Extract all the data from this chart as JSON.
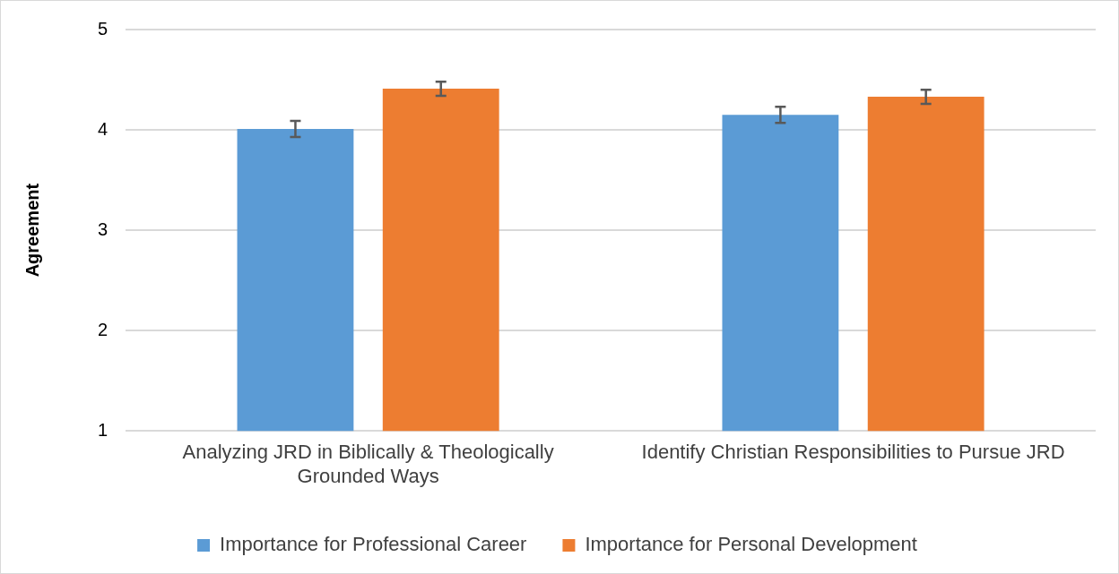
{
  "chart_data": {
    "type": "bar",
    "ylabel": "Agreement",
    "categories": [
      "Analyzing JRD in Biblically & Theologically Grounded Ways",
      "Identify Christian Responsibilities to Pursue JRD"
    ],
    "series": [
      {
        "name": "Importance for Professional Career",
        "color": "#5b9bd5",
        "values": [
          4.01,
          4.15
        ],
        "errors": [
          0.08,
          0.08
        ]
      },
      {
        "name": "Importance for Personal Development",
        "color": "#ed7d31",
        "values": [
          4.41,
          4.33
        ],
        "errors": [
          0.07,
          0.07
        ]
      }
    ],
    "ylim": [
      1,
      5
    ],
    "yticks": [
      1,
      2,
      3,
      4,
      5
    ],
    "grid": "y",
    "legend": "bottom"
  }
}
